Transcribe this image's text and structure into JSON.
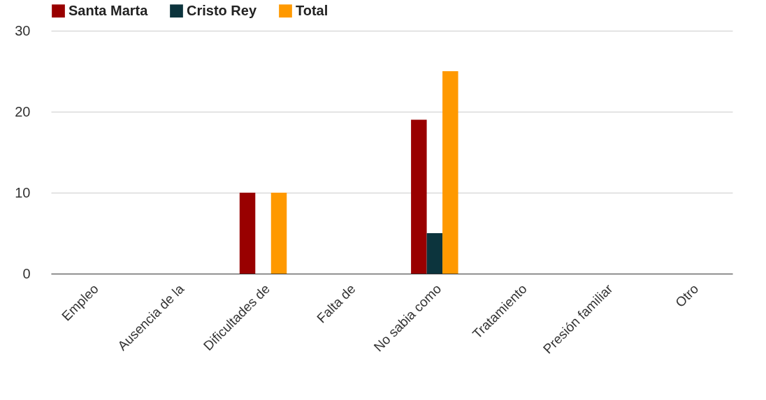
{
  "chart_data": {
    "type": "bar",
    "categories": [
      "Empleo",
      "Ausencia de la",
      "Dificultades de",
      "Falta de",
      "No sabia como",
      "Tratamiento",
      "Presión familiar",
      "Otro"
    ],
    "series": [
      {
        "name": "Santa Marta",
        "color": "#990000",
        "values": [
          0,
          0,
          10,
          0,
          19,
          0,
          0,
          0
        ]
      },
      {
        "name": "Cristo Rey",
        "color": "#0c343d",
        "values": [
          0,
          0,
          0,
          0,
          5,
          0,
          0,
          0
        ]
      },
      {
        "name": "Total",
        "color": "#ff9900",
        "values": [
          0,
          0,
          10,
          0,
          25,
          0,
          0,
          0
        ]
      }
    ],
    "ylim": [
      0,
      30
    ],
    "yticks": [
      0,
      10,
      20,
      30
    ],
    "grid": "y",
    "legend": "top"
  }
}
